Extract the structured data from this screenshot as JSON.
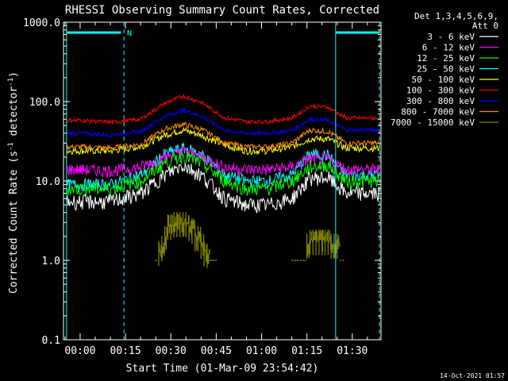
{
  "chart_data": {
    "type": "line",
    "title": "RHESSI Observing Summary Count Rates, Corrected",
    "xlabel": "Start Time (01-Mar-09 23:54:42)",
    "ylabel_main": "Corrected Count Rate (s",
    "ylabel_sup1": "-1",
    "ylabel_mid": " detector",
    "ylabel_sup2": "-1",
    "ylabel_end": ")",
    "yscale": "log",
    "ylim": [
      0.1,
      1000.0
    ],
    "xlim_minutes": [
      -5.5,
      32.5
    ],
    "grid": false,
    "y_ticks": [
      "0.1",
      "1.0",
      "10.0",
      "100.0",
      "1000.0"
    ],
    "x_ticks": [
      {
        "t": 0,
        "label": "00:00"
      },
      {
        "t": 15,
        "label": "00:15"
      },
      {
        "t": 30,
        "label": "00:30"
      },
      {
        "t": 45,
        "label": "00:45"
      },
      {
        "t": 60,
        "label": "01:00"
      },
      {
        "t": 75,
        "label": "01:15"
      },
      {
        "t": 90,
        "label": "01:30"
      }
    ],
    "legend_placement": "right",
    "legend_header": [
      "Det 1,3,4,5,6,9,",
      "Att 0"
    ],
    "series": [
      {
        "name": "3 - 6 keV",
        "color": "#ffffff",
        "x": [
          0,
          10,
          20,
          28,
          34,
          40,
          48,
          55,
          62,
          70,
          76,
          82,
          88
        ],
        "y": [
          5.5,
          5.5,
          7,
          12,
          16,
          12,
          6,
          5,
          5,
          6,
          11,
          11,
          7
        ]
      },
      {
        "name": "6 - 12 keV",
        "color": "#ff00ff",
        "x": [
          0,
          10,
          20,
          28,
          34,
          40,
          48,
          55,
          62,
          70,
          76,
          82,
          88
        ],
        "y": [
          14,
          13.5,
          15,
          20,
          24,
          20,
          15,
          14,
          14,
          15,
          19,
          19,
          14
        ]
      },
      {
        "name": "12 - 25 keV",
        "color": "#00ff00",
        "x": [
          0,
          10,
          20,
          28,
          34,
          40,
          48,
          55,
          62,
          70,
          76,
          82,
          88
        ],
        "y": [
          8,
          8,
          10,
          17,
          21,
          17,
          10,
          8,
          8,
          10,
          15,
          16,
          10
        ]
      },
      {
        "name": "25 - 50 keV",
        "color": "#00ffff",
        "x": [
          0,
          10,
          20,
          28,
          34,
          40,
          48,
          55,
          62,
          70,
          76,
          82,
          88
        ],
        "y": [
          9,
          9,
          12,
          22,
          26,
          22,
          12,
          10,
          10,
          12,
          22,
          21,
          12
        ]
      },
      {
        "name": "50 - 100 keV",
        "color": "#ffff00",
        "x": [
          0,
          10,
          20,
          28,
          34,
          40,
          48,
          55,
          62,
          70,
          76,
          82,
          88
        ],
        "y": [
          24,
          24,
          27,
          38,
          44,
          38,
          28,
          24,
          24,
          27,
          34,
          34,
          26
        ]
      },
      {
        "name": "100 - 300 keV",
        "color": "#ff0000",
        "x": [
          0,
          10,
          20,
          28,
          34,
          40,
          48,
          55,
          62,
          70,
          76,
          82,
          88
        ],
        "y": [
          58,
          55,
          60,
          95,
          118,
          98,
          62,
          56,
          56,
          62,
          88,
          85,
          62
        ]
      },
      {
        "name": "300 - 800 keV",
        "color": "#0000ff",
        "x": [
          0,
          10,
          20,
          28,
          34,
          40,
          48,
          55,
          62,
          70,
          76,
          82,
          88
        ],
        "y": [
          40,
          38,
          42,
          65,
          78,
          66,
          43,
          40,
          40,
          43,
          60,
          58,
          44
        ]
      },
      {
        "name": "800 - 7000 keV",
        "color": "#ff8c00",
        "x": [
          0,
          10,
          20,
          28,
          34,
          40,
          48,
          55,
          62,
          70,
          76,
          82,
          88
        ],
        "y": [
          27,
          26,
          29,
          45,
          52,
          45,
          30,
          27,
          27,
          30,
          44,
          42,
          30
        ]
      },
      {
        "name": "7000 - 15000 keV",
        "color": "#808000",
        "x": [
          25,
          26,
          27,
          28,
          29,
          30,
          31,
          32,
          33,
          34,
          35,
          36,
          37,
          38,
          39,
          40,
          41,
          42,
          43,
          44,
          45,
          70,
          71,
          72,
          73,
          74,
          75,
          76,
          77,
          78,
          79,
          80,
          81,
          82,
          83,
          84,
          85,
          86,
          87
        ],
        "y": [
          1.0,
          1.3,
          1.5,
          2.0,
          2.8,
          2.8,
          3.0,
          3.0,
          3.0,
          3.0,
          3.0,
          2.7,
          2.5,
          2.0,
          2.0,
          1.6,
          1.3,
          1.2,
          1.0,
          1.0,
          1.0,
          1.0,
          1.0,
          1.0,
          1.0,
          1.0,
          1.6,
          1.8,
          1.8,
          1.8,
          1.8,
          1.8,
          1.8,
          1.8,
          1.6,
          1.6,
          1.6,
          1.0,
          1.0
        ]
      }
    ],
    "attenuator_bar_color": "#00ffff",
    "flag_label": "N",
    "dashed_markers": [
      -4.5,
      14.5,
      84.5,
      99
    ],
    "solid_markers": [
      -4.5,
      84.5
    ],
    "bars": [
      [
        -4.5,
        13.5
      ],
      [
        84.5,
        99
      ]
    ]
  },
  "footer": {
    "timestamp": "14-Oct-2021 01:57"
  }
}
